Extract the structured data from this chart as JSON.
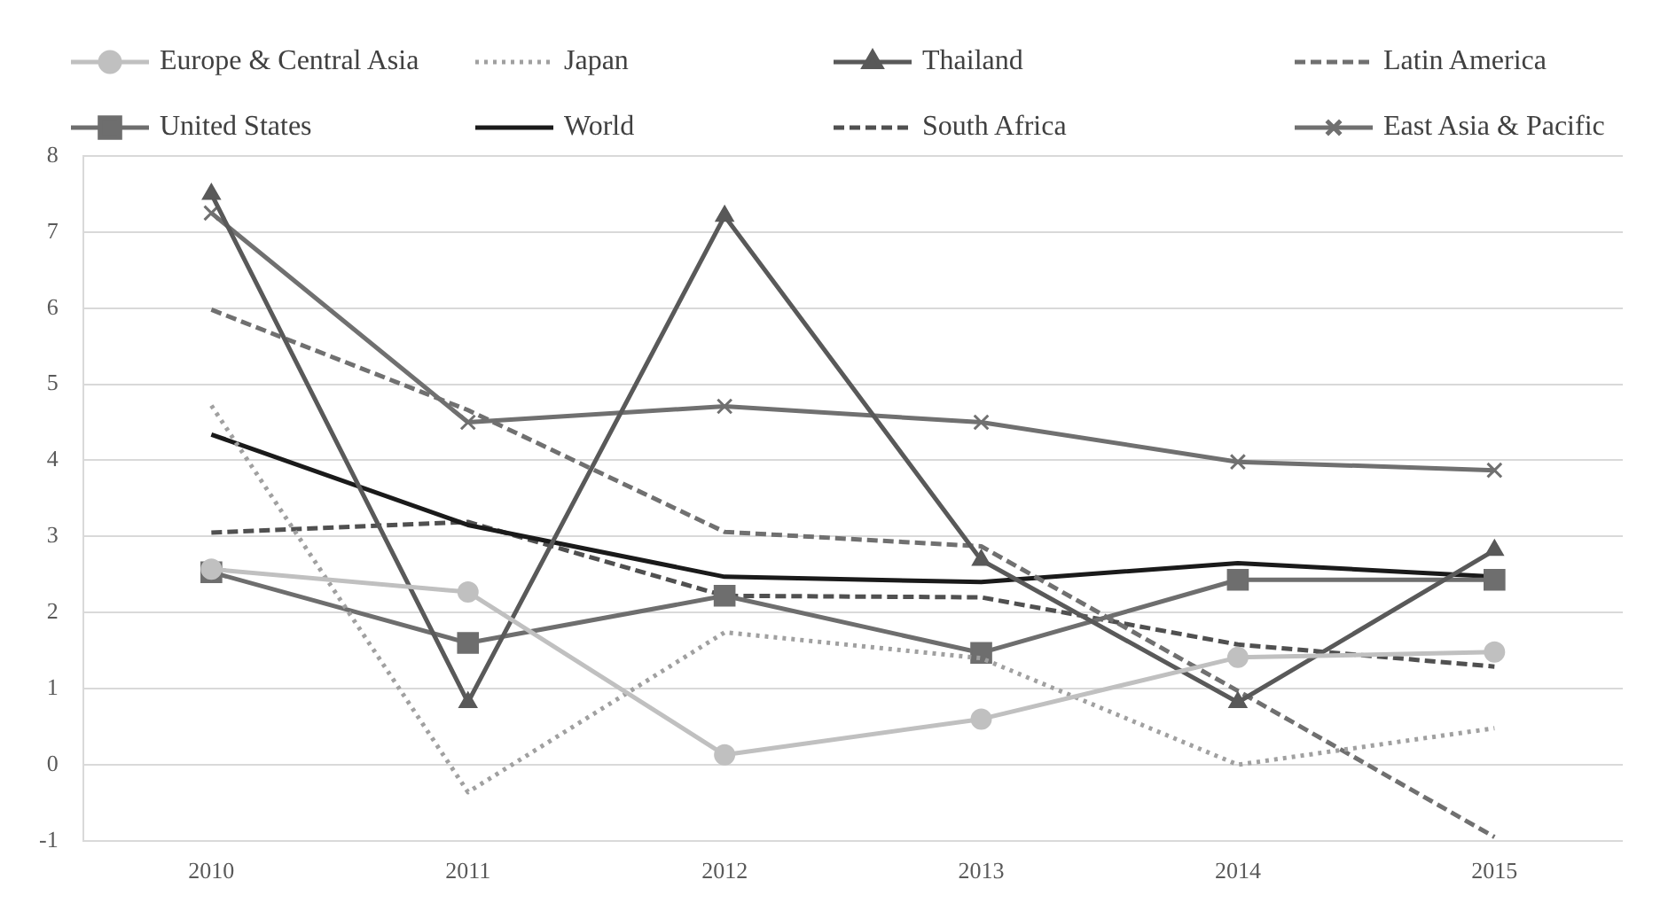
{
  "chart_data": {
    "type": "line",
    "categories": [
      "2010",
      "2011",
      "2012",
      "2013",
      "2014",
      "2015"
    ],
    "ylim": [
      -1,
      8
    ],
    "yticks": [
      -1,
      0,
      1,
      2,
      3,
      4,
      5,
      6,
      7,
      8
    ],
    "grid": "y",
    "legend": "top",
    "series": [
      {
        "name": "Europe & Central Asia",
        "color": "#c0c0c0",
        "marker": "circle",
        "line_style": "solid",
        "values": [
          2.57,
          2.27,
          0.13,
          0.6,
          1.41,
          1.48
        ]
      },
      {
        "name": "Japan",
        "color": "#a0a0a0",
        "marker": "none",
        "line_style": "dotted",
        "values": [
          4.72,
          -0.36,
          1.74,
          1.4,
          0,
          0.48
        ]
      },
      {
        "name": "Thailand",
        "color": "#595959",
        "marker": "triangle",
        "line_style": "solid",
        "values": [
          7.5,
          0.82,
          7.21,
          2.69,
          0.82,
          2.82
        ]
      },
      {
        "name": "Latin America",
        "color": "#707070",
        "marker": "none",
        "line_style": "dashed",
        "values": [
          5.98,
          4.66,
          3.06,
          2.87,
          0.97,
          -0.95
        ]
      },
      {
        "name": "United States",
        "color": "#6e6e6e",
        "marker": "square",
        "line_style": "solid",
        "values": [
          2.53,
          1.6,
          2.22,
          1.47,
          2.43,
          2.43
        ]
      },
      {
        "name": "World",
        "color": "#1a1a1a",
        "marker": "none",
        "line_style": "solid",
        "values": [
          4.34,
          3.15,
          2.47,
          2.4,
          2.65,
          2.47
        ]
      },
      {
        "name": "South Africa",
        "color": "#505050",
        "marker": "none",
        "line_style": "dashed",
        "values": [
          3.05,
          3.19,
          2.22,
          2.2,
          1.58,
          1.29
        ]
      },
      {
        "name": "East Asia & Pacific",
        "color": "#707070",
        "marker": "cross",
        "line_style": "solid",
        "values": [
          7.25,
          4.5,
          4.71,
          4.5,
          3.98,
          3.87
        ]
      }
    ]
  }
}
